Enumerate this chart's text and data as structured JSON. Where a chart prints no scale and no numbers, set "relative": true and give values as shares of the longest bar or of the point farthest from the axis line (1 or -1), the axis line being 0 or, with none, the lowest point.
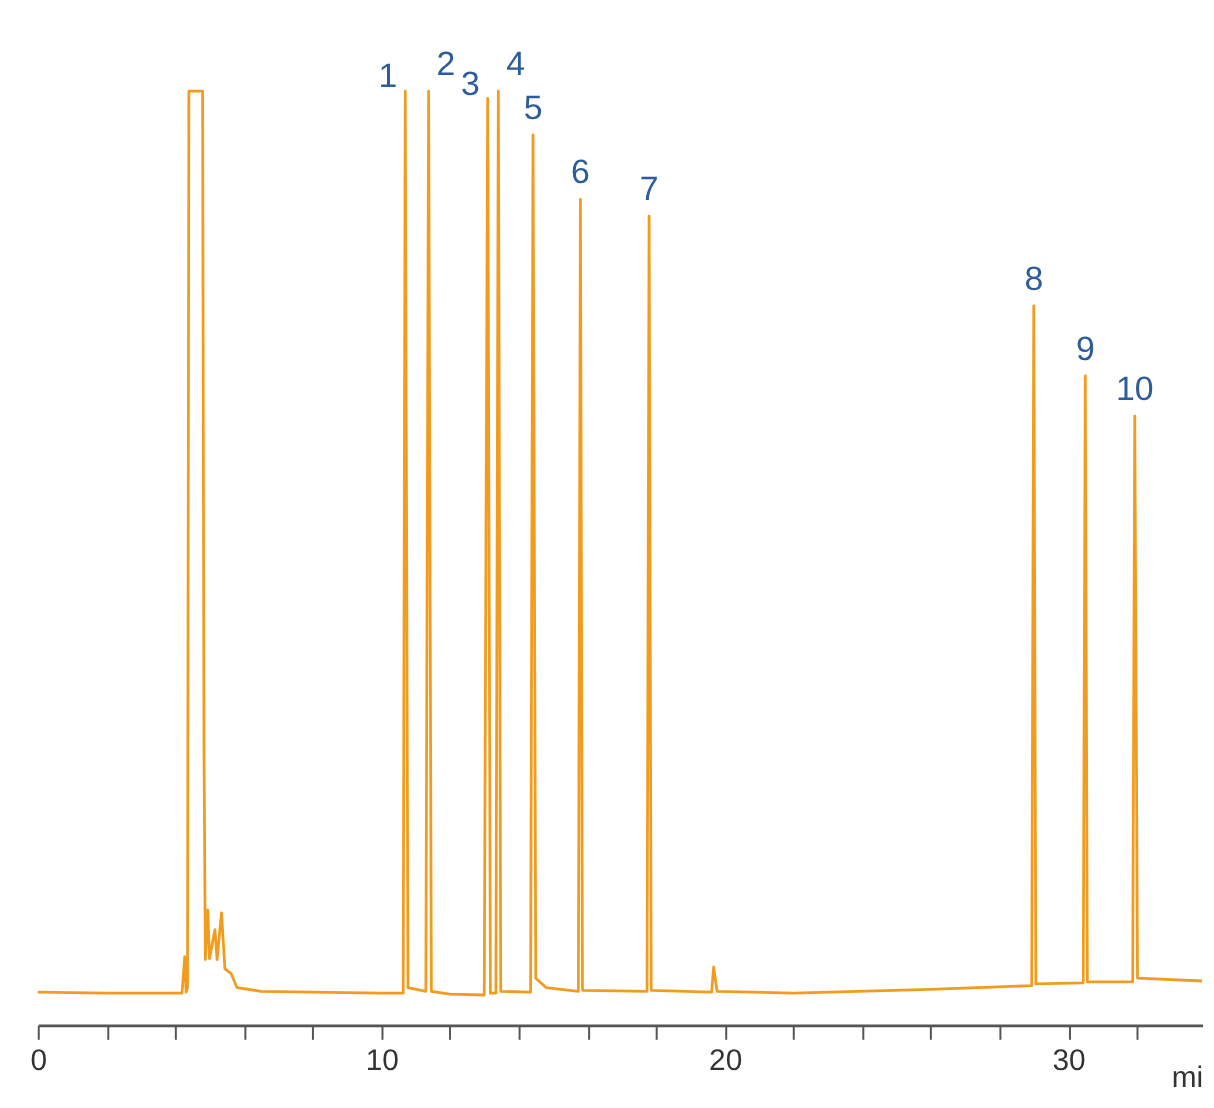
{
  "chart_data": {
    "type": "line",
    "relative": true,
    "xlabel": "mi",
    "tick_labels": "x",
    "grid": false,
    "marker": "none",
    "line_style": "solid",
    "xlim": [
      0,
      33.9
    ],
    "xticks": [
      0,
      {
        "value": 2,
        "label": null
      },
      {
        "value": 4,
        "label": null
      },
      {
        "value": 6,
        "label": null
      },
      {
        "value": 8,
        "label": null
      },
      10,
      {
        "value": 12,
        "label": null
      },
      {
        "value": 14,
        "label": null
      },
      {
        "value": 16,
        "label": null
      },
      {
        "value": 18,
        "label": null
      },
      20,
      {
        "value": 22,
        "label": null
      },
      {
        "value": 24,
        "label": null
      },
      {
        "value": 26,
        "label": null
      },
      {
        "value": 28,
        "label": null
      },
      30,
      {
        "value": 32,
        "label": null
      }
    ],
    "series": [
      {
        "color": "#f29c1f",
        "x": [
          0,
          2,
          4.2,
          4.28,
          4.32,
          4.36,
          4.4,
          4.8,
          4.84,
          4.88,
          4.95,
          5.0,
          5.16,
          5.22,
          5.35,
          5.45,
          5.63,
          5.8,
          6.5,
          8,
          10,
          10.64,
          10.7,
          10.78,
          11.3,
          11.38,
          11.46,
          12,
          13.0,
          13.1,
          13.18,
          13.34,
          13.41,
          13.48,
          14.35,
          14.42,
          14.5,
          14.8,
          15.74,
          15.8,
          15.86,
          17.74,
          17.8,
          17.86,
          19.62,
          19.68,
          19.78,
          22,
          26,
          28.94,
          29.0,
          29.06,
          30.44,
          30.5,
          30.56,
          31.88,
          31.94,
          32.02,
          33.9
        ],
        "values": [
          0.035,
          0.034,
          0.034,
          0.073,
          0.035,
          0.04,
          1,
          1,
          0.3,
          0.07,
          0.123,
          0.071,
          0.102,
          0.07,
          0.12,
          0.06,
          0.055,
          0.04,
          0.036,
          0.035,
          0.034,
          0.034,
          1,
          0.04,
          0.036,
          1,
          0.036,
          0.033,
          0.032,
          0.992,
          0.034,
          0.034,
          1,
          0.036,
          0.035,
          0.953,
          0.05,
          0.04,
          0.036,
          0.884,
          0.037,
          0.036,
          0.866,
          0.037,
          0.035,
          0.062,
          0.036,
          0.034,
          0.038,
          0.042,
          0.77,
          0.044,
          0.045,
          0.695,
          0.046,
          0.046,
          0.652,
          0.05,
          0.047
        ]
      }
    ],
    "annotations": [
      {
        "text": "1",
        "x": 10.7,
        "y": 1
      },
      {
        "text": "2",
        "x": 11.38,
        "y": 1
      },
      {
        "text": "3",
        "x": 13.1,
        "y": 0.992
      },
      {
        "text": "4",
        "x": 13.41,
        "y": 1
      },
      {
        "text": "5",
        "x": 14.42,
        "y": 0.953
      },
      {
        "text": "6",
        "x": 15.8,
        "y": 0.884
      },
      {
        "text": "7",
        "x": 17.8,
        "y": 0.866
      },
      {
        "text": "8",
        "x": 29.0,
        "y": 0.77
      },
      {
        "text": "9",
        "x": 30.5,
        "y": 0.695
      },
      {
        "text": "10",
        "x": 31.94,
        "y": 0.652
      }
    ]
  }
}
